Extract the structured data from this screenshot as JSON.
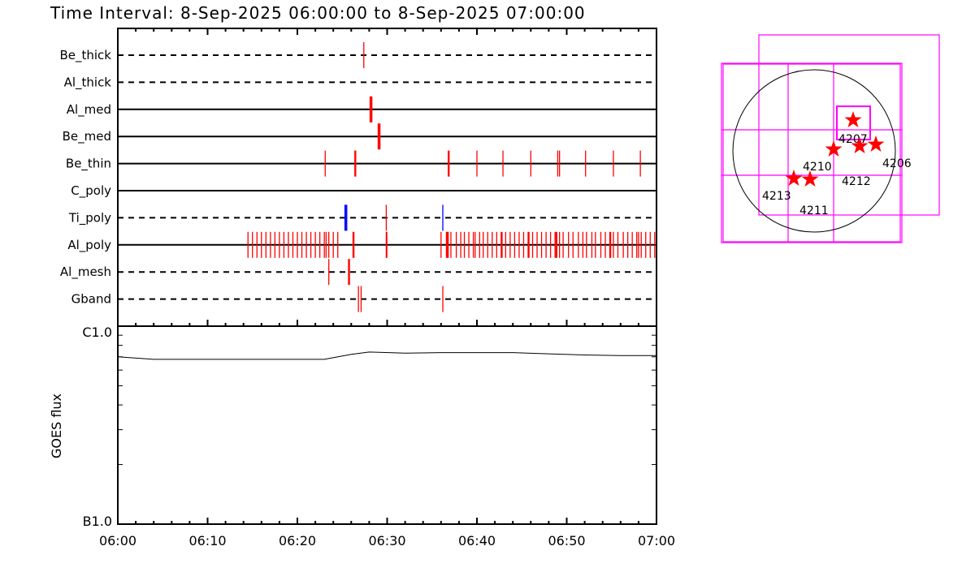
{
  "title": "Time Interval:  8-Sep-2025 06:00:00 to  8-Sep-2025 07:00:00",
  "chart_data": [
    {
      "type": "timeline",
      "x_range": [
        "06:00",
        "07:00"
      ],
      "x_ticks": [
        "06:00",
        "06:10",
        "06:20",
        "06:30",
        "06:40",
        "06:50",
        "07:00"
      ],
      "colors": {
        "default": "#ff0000",
        "blue": "#0000ff"
      },
      "rows": [
        {
          "label": "Be_thick",
          "line": "dashed",
          "events": [
            {
              "t": "06:27:24"
            }
          ]
        },
        {
          "label": "Al_thick",
          "line": "dashed",
          "events": []
        },
        {
          "label": "Al_med",
          "line": "solid",
          "events": [
            {
              "t": "06:28:06"
            },
            {
              "t": "06:28:12"
            },
            {
              "t": "06:28:18"
            }
          ]
        },
        {
          "label": "Be_med",
          "line": "solid",
          "events": [
            {
              "t": "06:29:00"
            },
            {
              "t": "06:29:06"
            },
            {
              "t": "06:29:12"
            }
          ]
        },
        {
          "label": "Be_thin",
          "line": "solid",
          "events": [
            {
              "t": "06:23:06"
            },
            {
              "t": "06:26:24"
            },
            {
              "t": "06:26:30"
            },
            {
              "t": "06:36:48"
            },
            {
              "t": "06:36:54"
            },
            {
              "t": "06:40:00"
            },
            {
              "t": "06:42:54"
            },
            {
              "t": "06:46:00"
            },
            {
              "t": "06:49:00"
            },
            {
              "t": "06:49:12"
            },
            {
              "t": "06:52:06"
            },
            {
              "t": "06:55:12"
            },
            {
              "t": "06:58:12"
            }
          ]
        },
        {
          "label": "C_poly",
          "line": "solid",
          "events": []
        },
        {
          "label": "Ti_poly",
          "line": "dashed",
          "events": [
            {
              "t": "06:25:18",
              "c": "blue"
            },
            {
              "t": "06:25:24",
              "c": "blue"
            },
            {
              "t": "06:25:30",
              "c": "blue"
            },
            {
              "t": "06:29:54"
            },
            {
              "t": "06:36:12",
              "c": "blue"
            }
          ]
        },
        {
          "label": "Al_poly",
          "line": "solid",
          "events": [
            {
              "t": "06:14:30"
            },
            {
              "t": "06:15:00"
            },
            {
              "t": "06:15:30"
            },
            {
              "t": "06:16:00"
            },
            {
              "t": "06:16:30"
            },
            {
              "t": "06:17:00"
            },
            {
              "t": "06:17:30"
            },
            {
              "t": "06:18:00"
            },
            {
              "t": "06:18:30"
            },
            {
              "t": "06:19:00"
            },
            {
              "t": "06:19:30"
            },
            {
              "t": "06:20:00"
            },
            {
              "t": "06:20:30"
            },
            {
              "t": "06:21:00"
            },
            {
              "t": "06:21:30"
            },
            {
              "t": "06:22:00"
            },
            {
              "t": "06:22:30"
            },
            {
              "t": "06:23:00"
            },
            {
              "t": "06:23:12"
            },
            {
              "t": "06:23:30"
            },
            {
              "t": "06:24:00"
            },
            {
              "t": "06:24:30"
            },
            {
              "t": "06:26:12"
            },
            {
              "t": "06:26:18"
            },
            {
              "t": "06:29:54"
            },
            {
              "t": "06:29:58"
            },
            {
              "t": "06:36:00"
            },
            {
              "t": "06:36:36"
            },
            {
              "t": "06:36:42"
            },
            {
              "t": "06:36:48"
            },
            {
              "t": "06:37:06"
            },
            {
              "t": "06:37:42"
            },
            {
              "t": "06:38:12"
            },
            {
              "t": "06:38:36"
            },
            {
              "t": "06:39:06"
            },
            {
              "t": "06:39:36"
            },
            {
              "t": "06:39:48"
            },
            {
              "t": "06:40:18"
            },
            {
              "t": "06:40:42"
            },
            {
              "t": "06:41:12"
            },
            {
              "t": "06:41:42"
            },
            {
              "t": "06:42:12"
            },
            {
              "t": "06:42:42"
            },
            {
              "t": "06:42:48"
            },
            {
              "t": "06:43:12"
            },
            {
              "t": "06:43:42"
            },
            {
              "t": "06:44:12"
            },
            {
              "t": "06:44:42"
            },
            {
              "t": "06:45:12"
            },
            {
              "t": "06:45:42"
            },
            {
              "t": "06:45:48"
            },
            {
              "t": "06:46:12"
            },
            {
              "t": "06:46:42"
            },
            {
              "t": "06:47:12"
            },
            {
              "t": "06:47:42"
            },
            {
              "t": "06:48:12"
            },
            {
              "t": "06:48:42"
            },
            {
              "t": "06:48:48"
            },
            {
              "t": "06:48:54"
            },
            {
              "t": "06:49:12"
            },
            {
              "t": "06:49:36"
            },
            {
              "t": "06:50:12"
            },
            {
              "t": "06:50:42"
            },
            {
              "t": "06:51:18"
            },
            {
              "t": "06:51:48"
            },
            {
              "t": "06:52:12"
            },
            {
              "t": "06:52:48"
            },
            {
              "t": "06:53:12"
            },
            {
              "t": "06:53:48"
            },
            {
              "t": "06:54:18"
            },
            {
              "t": "06:54:48"
            },
            {
              "t": "06:54:54"
            },
            {
              "t": "06:55:12"
            },
            {
              "t": "06:55:42"
            },
            {
              "t": "06:56:18"
            },
            {
              "t": "06:56:48"
            },
            {
              "t": "06:57:18"
            },
            {
              "t": "06:57:48"
            },
            {
              "t": "06:58:00"
            },
            {
              "t": "06:58:18"
            },
            {
              "t": "06:58:48"
            },
            {
              "t": "06:59:18"
            },
            {
              "t": "06:59:48"
            }
          ]
        },
        {
          "label": "Al_mesh",
          "line": "dashed",
          "events": [
            {
              "t": "06:23:30"
            },
            {
              "t": "06:25:42"
            },
            {
              "t": "06:25:48"
            }
          ]
        },
        {
          "label": "Gband",
          "line": "dashed",
          "events": [
            {
              "t": "06:26:48"
            },
            {
              "t": "06:27:06"
            },
            {
              "t": "06:36:12"
            }
          ]
        }
      ]
    },
    {
      "type": "line",
      "ylabel": "GOES flux",
      "y_scale": "log",
      "ylim": [
        1e-07,
        1e-06
      ],
      "y_tick_labels": [
        "B1.0",
        "C1.0"
      ],
      "x_tick_labels": [
        "06:00",
        "06:10",
        "06:20",
        "06:30",
        "06:40",
        "06:50",
        "07:00"
      ],
      "x": [
        "06:00",
        "06:04",
        "06:08",
        "06:12",
        "06:16",
        "06:20",
        "06:23",
        "06:26",
        "06:28",
        "06:32",
        "06:36",
        "06:40",
        "06:44",
        "06:48",
        "06:52",
        "06:56",
        "07:00"
      ],
      "y": [
        7e-07,
        6.8e-07,
        6.8e-07,
        6.8e-07,
        6.8e-07,
        6.8e-07,
        6.8e-07,
        7.2e-07,
        7.4e-07,
        7.3e-07,
        7.35e-07,
        7.35e-07,
        7.35e-07,
        7.25e-07,
        7.15e-07,
        7.1e-07,
        7.1e-07
      ]
    }
  ],
  "map": {
    "box_color": "#ff00ff",
    "star_color": "#ff0000",
    "regions": [
      "4207",
      "4210",
      "4212",
      "4206",
      "4213",
      "4211"
    ]
  }
}
